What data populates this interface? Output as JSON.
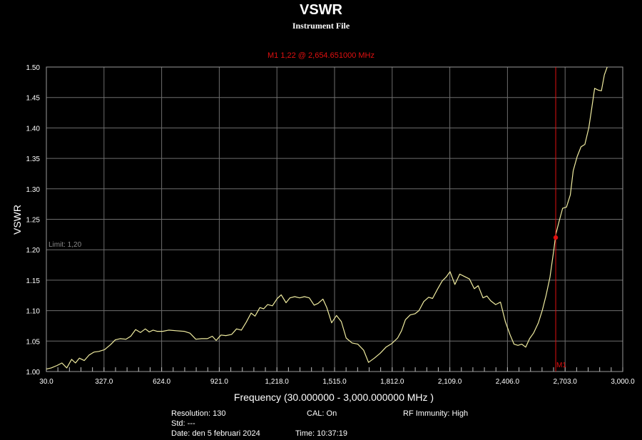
{
  "chart_data": {
    "type": "line",
    "title": "VSWR",
    "subtitle": "Instrument File",
    "xlabel": "Frequency (30.000000 - 3,000.000000 MHz )",
    "ylabel": "VSWR",
    "xlim": [
      30,
      3000
    ],
    "ylim": [
      1.0,
      1.5
    ],
    "grid": true,
    "x_ticks": [
      "30.0",
      "327.0",
      "624.0",
      "921.0",
      "1,218.0",
      "1,515.0",
      "1,812.0",
      "2,109.0",
      "2,406.0",
      "2,703.0",
      "3,000.0"
    ],
    "y_ticks": [
      "1.00",
      "1.05",
      "1.10",
      "1.15",
      "1.20",
      "1.25",
      "1.30",
      "1.35",
      "1.40",
      "1.45",
      "1.50"
    ],
    "limit": {
      "value": 1.2,
      "label": "Limit: 1,20"
    },
    "marker": {
      "name": "M1",
      "x": 2654.651,
      "y": 1.22,
      "label": "M1  1,22 @ 2,654.651000 MHz"
    },
    "series": [
      {
        "points": [
          [
            30,
            1.004
          ],
          [
            55,
            1.006
          ],
          [
            85,
            1.01
          ],
          [
            110,
            1.014
          ],
          [
            135,
            1.006
          ],
          [
            160,
            1.02
          ],
          [
            180,
            1.014
          ],
          [
            200,
            1.022
          ],
          [
            225,
            1.018
          ],
          [
            250,
            1.027
          ],
          [
            275,
            1.032
          ],
          [
            300,
            1.033
          ],
          [
            330,
            1.036
          ],
          [
            360,
            1.044
          ],
          [
            385,
            1.052
          ],
          [
            410,
            1.054
          ],
          [
            440,
            1.053
          ],
          [
            465,
            1.058
          ],
          [
            490,
            1.069
          ],
          [
            515,
            1.064
          ],
          [
            540,
            1.07
          ],
          [
            560,
            1.065
          ],
          [
            580,
            1.068
          ],
          [
            600,
            1.066
          ],
          [
            630,
            1.066
          ],
          [
            660,
            1.068
          ],
          [
            700,
            1.067
          ],
          [
            740,
            1.066
          ],
          [
            770,
            1.063
          ],
          [
            800,
            1.053
          ],
          [
            830,
            1.054
          ],
          [
            860,
            1.054
          ],
          [
            885,
            1.058
          ],
          [
            905,
            1.051
          ],
          [
            930,
            1.06
          ],
          [
            955,
            1.059
          ],
          [
            985,
            1.061
          ],
          [
            1010,
            1.07
          ],
          [
            1035,
            1.068
          ],
          [
            1060,
            1.081
          ],
          [
            1085,
            1.096
          ],
          [
            1105,
            1.091
          ],
          [
            1130,
            1.105
          ],
          [
            1150,
            1.103
          ],
          [
            1170,
            1.11
          ],
          [
            1195,
            1.108
          ],
          [
            1220,
            1.12
          ],
          [
            1240,
            1.126
          ],
          [
            1265,
            1.113
          ],
          [
            1285,
            1.121
          ],
          [
            1310,
            1.123
          ],
          [
            1335,
            1.121
          ],
          [
            1360,
            1.123
          ],
          [
            1385,
            1.121
          ],
          [
            1410,
            1.109
          ],
          [
            1430,
            1.112
          ],
          [
            1455,
            1.119
          ],
          [
            1475,
            1.105
          ],
          [
            1500,
            1.08
          ],
          [
            1525,
            1.092
          ],
          [
            1550,
            1.082
          ],
          [
            1575,
            1.055
          ],
          [
            1605,
            1.047
          ],
          [
            1635,
            1.045
          ],
          [
            1665,
            1.035
          ],
          [
            1690,
            1.015
          ],
          [
            1720,
            1.022
          ],
          [
            1750,
            1.03
          ],
          [
            1780,
            1.04
          ],
          [
            1810,
            1.046
          ],
          [
            1840,
            1.055
          ],
          [
            1860,
            1.067
          ],
          [
            1880,
            1.085
          ],
          [
            1905,
            1.093
          ],
          [
            1930,
            1.095
          ],
          [
            1950,
            1.1
          ],
          [
            1975,
            1.115
          ],
          [
            2000,
            1.122
          ],
          [
            2020,
            1.12
          ],
          [
            2045,
            1.135
          ],
          [
            2070,
            1.149
          ],
          [
            2090,
            1.155
          ],
          [
            2110,
            1.164
          ],
          [
            2135,
            1.143
          ],
          [
            2160,
            1.16
          ],
          [
            2185,
            1.156
          ],
          [
            2210,
            1.152
          ],
          [
            2235,
            1.136
          ],
          [
            2255,
            1.141
          ],
          [
            2280,
            1.121
          ],
          [
            2300,
            1.124
          ],
          [
            2320,
            1.116
          ],
          [
            2345,
            1.11
          ],
          [
            2370,
            1.114
          ],
          [
            2395,
            1.082
          ],
          [
            2420,
            1.06
          ],
          [
            2440,
            1.045
          ],
          [
            2460,
            1.043
          ],
          [
            2480,
            1.045
          ],
          [
            2500,
            1.04
          ],
          [
            2520,
            1.054
          ],
          [
            2540,
            1.063
          ],
          [
            2565,
            1.08
          ],
          [
            2585,
            1.1
          ],
          [
            2605,
            1.125
          ],
          [
            2625,
            1.155
          ],
          [
            2645,
            1.2
          ],
          [
            2655,
            1.225
          ],
          [
            2670,
            1.244
          ],
          [
            2690,
            1.268
          ],
          [
            2710,
            1.27
          ],
          [
            2730,
            1.29
          ],
          [
            2745,
            1.33
          ],
          [
            2765,
            1.353
          ],
          [
            2785,
            1.369
          ],
          [
            2805,
            1.373
          ],
          [
            2825,
            1.4
          ],
          [
            2840,
            1.432
          ],
          [
            2855,
            1.465
          ],
          [
            2875,
            1.462
          ],
          [
            2890,
            1.461
          ],
          [
            2905,
            1.487
          ],
          [
            2920,
            1.5
          ]
        ]
      }
    ]
  },
  "footer": {
    "resolution": "Resolution: 130",
    "cal": "CAL: On",
    "rf_immunity": "RF Immunity: High",
    "std": "Std: ---",
    "date": "Date: den 5 februari 2024",
    "time": "Time: 10:37:19"
  },
  "colors": {
    "trace": "#f0eca0",
    "grid": "#6e6e6e",
    "marker": "#e01010",
    "limit": "#8a8a8a",
    "text": "#ffffff",
    "background": "#000000"
  }
}
